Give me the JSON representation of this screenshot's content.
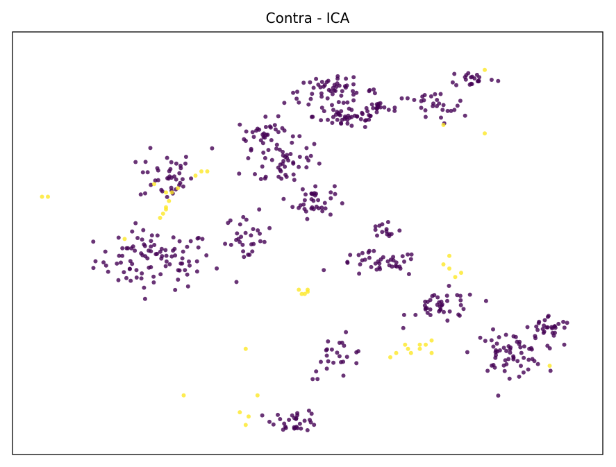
{
  "chart_data": {
    "type": "scatter",
    "title": "Contra - ICA",
    "xlabel": "",
    "ylabel": "",
    "grid": false,
    "axes_ticks": false,
    "colors": {
      "class_0": "#440154",
      "class_1": "#fde725",
      "frame": "#000000"
    },
    "point_alpha": 0.8,
    "clusters": [
      {
        "center": [
          0.24,
          0.46
        ],
        "spread": [
          0.1,
          0.07
        ],
        "n0": 95,
        "n1": 0
      },
      {
        "center": [
          0.26,
          0.66
        ],
        "spread": [
          0.045,
          0.06
        ],
        "n0": 40,
        "n1": 0
      },
      {
        "center": [
          0.46,
          0.69
        ],
        "spread": [
          0.07,
          0.06
        ],
        "n0": 45,
        "n1": 0
      },
      {
        "center": [
          0.43,
          0.76
        ],
        "spread": [
          0.05,
          0.035
        ],
        "n0": 35,
        "n1": 0
      },
      {
        "center": [
          0.51,
          0.6
        ],
        "spread": [
          0.035,
          0.04
        ],
        "n0": 35,
        "n1": 0
      },
      {
        "center": [
          0.4,
          0.51
        ],
        "spread": [
          0.04,
          0.06
        ],
        "n0": 30,
        "n1": 0
      },
      {
        "center": [
          0.54,
          0.86
        ],
        "spread": [
          0.08,
          0.03
        ],
        "n0": 55,
        "n1": 0
      },
      {
        "center": [
          0.57,
          0.8
        ],
        "spread": [
          0.06,
          0.03
        ],
        "n0": 45,
        "n1": 0
      },
      {
        "center": [
          0.62,
          0.45
        ],
        "spread": [
          0.07,
          0.03
        ],
        "n0": 40,
        "n1": 0
      },
      {
        "center": [
          0.73,
          0.35
        ],
        "spread": [
          0.06,
          0.04
        ],
        "n0": 40,
        "n1": 0
      },
      {
        "center": [
          0.48,
          0.08
        ],
        "spread": [
          0.04,
          0.025
        ],
        "n0": 30,
        "n1": 0
      },
      {
        "center": [
          0.55,
          0.23
        ],
        "spread": [
          0.05,
          0.05
        ],
        "n0": 25,
        "n1": 0
      },
      {
        "center": [
          0.84,
          0.24
        ],
        "spread": [
          0.06,
          0.05
        ],
        "n0": 60,
        "n1": 0
      },
      {
        "center": [
          0.71,
          0.82
        ],
        "spread": [
          0.06,
          0.04
        ],
        "n0": 30,
        "n1": 0
      },
      {
        "center": [
          0.62,
          0.82
        ],
        "spread": [
          0.02,
          0.02
        ],
        "n0": 14,
        "n1": 0
      },
      {
        "center": [
          0.63,
          0.53
        ],
        "spread": [
          0.03,
          0.03
        ],
        "n0": 14,
        "n1": 0
      },
      {
        "center": [
          0.78,
          0.89
        ],
        "spread": [
          0.04,
          0.02
        ],
        "n0": 20,
        "n1": 0
      },
      {
        "center": [
          0.91,
          0.3
        ],
        "spread": [
          0.04,
          0.03
        ],
        "n0": 28,
        "n1": 0
      }
    ],
    "highlight_points": [
      [
        0.05,
        0.61
      ],
      [
        0.06,
        0.61
      ],
      [
        0.26,
        0.62
      ],
      [
        0.27,
        0.62
      ],
      [
        0.28,
        0.63
      ],
      [
        0.265,
        0.6
      ],
      [
        0.26,
        0.58
      ],
      [
        0.26,
        0.585
      ],
      [
        0.25,
        0.56
      ],
      [
        0.255,
        0.57
      ],
      [
        0.31,
        0.66
      ],
      [
        0.32,
        0.67
      ],
      [
        0.33,
        0.67
      ],
      [
        0.19,
        0.51
      ],
      [
        0.24,
        0.64
      ],
      [
        0.485,
        0.39
      ],
      [
        0.49,
        0.38
      ],
      [
        0.495,
        0.38
      ],
      [
        0.5,
        0.39
      ],
      [
        0.5,
        0.385
      ],
      [
        0.64,
        0.23
      ],
      [
        0.65,
        0.24
      ],
      [
        0.67,
        0.25
      ],
      [
        0.69,
        0.25
      ],
      [
        0.7,
        0.26
      ],
      [
        0.71,
        0.27
      ],
      [
        0.675,
        0.24
      ],
      [
        0.665,
        0.26
      ],
      [
        0.69,
        0.26
      ],
      [
        0.71,
        0.24
      ],
      [
        0.91,
        0.21
      ],
      [
        0.395,
        0.25
      ],
      [
        0.4,
        0.09
      ],
      [
        0.395,
        0.07
      ],
      [
        0.385,
        0.1
      ],
      [
        0.29,
        0.14
      ],
      [
        0.415,
        0.14
      ],
      [
        0.73,
        0.45
      ],
      [
        0.74,
        0.44
      ],
      [
        0.76,
        0.43
      ],
      [
        0.75,
        0.42
      ],
      [
        0.74,
        0.47
      ],
      [
        0.73,
        0.78
      ],
      [
        0.8,
        0.76
      ],
      [
        0.8,
        0.91
      ]
    ]
  }
}
